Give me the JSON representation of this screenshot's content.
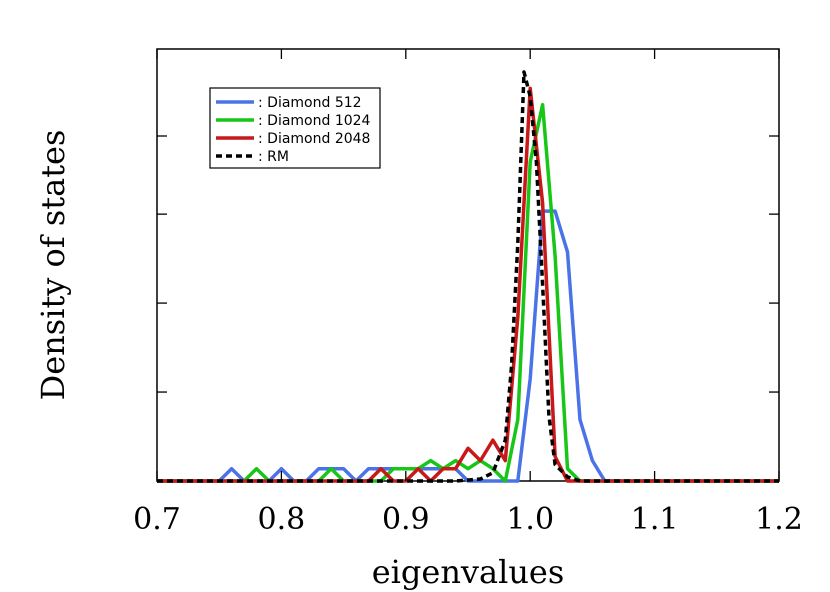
{
  "chart_data": {
    "type": "line",
    "title": "",
    "xlabel": "eigenvalues",
    "ylabel": "Density of states",
    "xlim": [
      0.7,
      1.2
    ],
    "ylim": [
      0,
      1.0
    ],
    "x_ticks": [
      0.7,
      0.8,
      0.9,
      1.0,
      1.1,
      1.2
    ],
    "x_tick_labels": [
      "0.7",
      "0.8",
      "0.9",
      "1.0",
      "1.1",
      "1.2"
    ],
    "y_ticks": [
      0.25,
      0.5,
      0.75
    ],
    "y_tick_labels_shown": false,
    "grid": false,
    "legend_position": "top-left",
    "series": [
      {
        "name": ": Diamond 512",
        "color": "#4a73e8",
        "dash": "solid",
        "x": [
          0.7,
          0.75,
          0.76,
          0.77,
          0.79,
          0.8,
          0.81,
          0.82,
          0.83,
          0.85,
          0.86,
          0.87,
          0.88,
          0.9,
          0.91,
          0.92,
          0.93,
          0.94,
          0.95,
          0.96,
          0.97,
          0.98,
          0.99,
          1.0,
          1.01,
          1.02,
          1.03,
          1.04,
          1.05,
          1.06,
          1.2
        ],
        "y": [
          0,
          0,
          0.03,
          0,
          0,
          0.03,
          0,
          0,
          0.03,
          0.03,
          0,
          0.03,
          0.03,
          0.03,
          0.03,
          0.03,
          0.03,
          0.03,
          0,
          0,
          0,
          0,
          0,
          0.25,
          0.66,
          0.66,
          0.56,
          0.15,
          0.05,
          0,
          0
        ]
      },
      {
        "name": ": Diamond 1024",
        "color": "#17c617",
        "dash": "solid",
        "x": [
          0.7,
          0.77,
          0.78,
          0.79,
          0.83,
          0.84,
          0.85,
          0.86,
          0.87,
          0.88,
          0.89,
          0.9,
          0.91,
          0.92,
          0.93,
          0.94,
          0.95,
          0.96,
          0.97,
          0.98,
          0.99,
          1.0,
          1.01,
          1.02,
          1.03,
          1.04,
          1.2
        ],
        "y": [
          0,
          0,
          0.03,
          0,
          0,
          0.03,
          0,
          0,
          0,
          0,
          0.03,
          0.03,
          0.03,
          0.05,
          0.03,
          0.05,
          0.03,
          0.05,
          0.03,
          0,
          0.15,
          0.78,
          0.92,
          0.55,
          0.03,
          0,
          0
        ]
      },
      {
        "name": ": Diamond 2048",
        "color": "#c81818",
        "dash": "solid",
        "x": [
          0.7,
          0.87,
          0.88,
          0.89,
          0.9,
          0.91,
          0.92,
          0.93,
          0.94,
          0.95,
          0.96,
          0.97,
          0.98,
          0.99,
          1.0,
          1.01,
          1.02,
          1.03,
          1.2
        ],
        "y": [
          0,
          0,
          0.03,
          0,
          0,
          0.03,
          0,
          0.03,
          0.03,
          0.08,
          0.05,
          0.1,
          0.05,
          0.4,
          0.96,
          0.68,
          0.06,
          0,
          0
        ]
      },
      {
        "name": ": RM",
        "color": "#000000",
        "dash": "dashed",
        "x": [
          0.7,
          0.94,
          0.96,
          0.97,
          0.98,
          0.985,
          0.99,
          0.995,
          1.0,
          1.005,
          1.01,
          1.015,
          1.02,
          1.03,
          1.04,
          1.2
        ],
        "y": [
          0,
          0,
          0.005,
          0.02,
          0.1,
          0.28,
          0.58,
          1.0,
          0.94,
          0.78,
          0.48,
          0.16,
          0.04,
          0.01,
          0,
          0
        ]
      }
    ]
  }
}
